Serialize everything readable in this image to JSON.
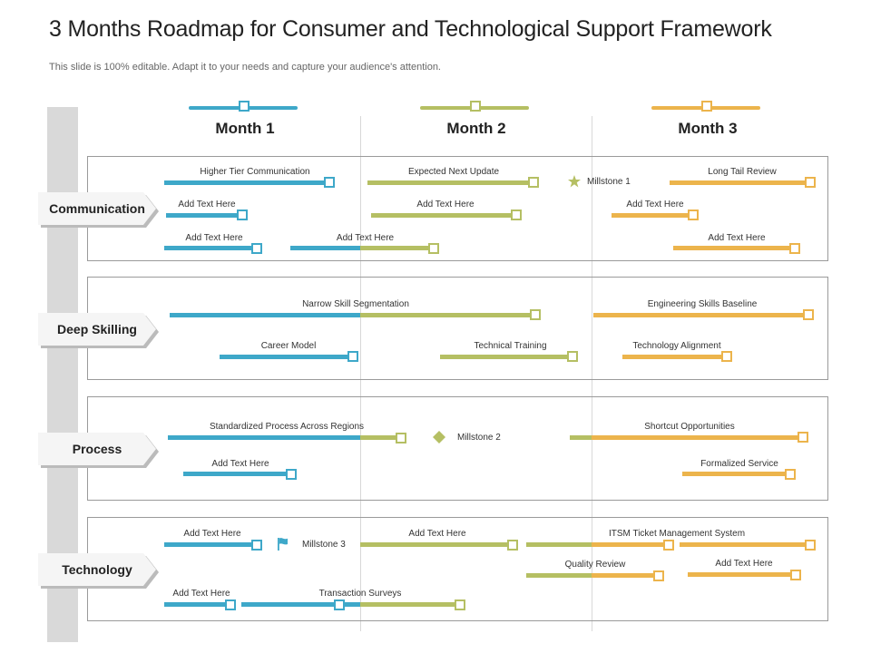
{
  "title": "3 Months Roadmap for Consumer and Technological Support Framework",
  "subtitle": "This slide is 100% editable. Adapt it to your needs and capture your audience's attention.",
  "colors": {
    "blue": "#3ea8c9",
    "olive": "#b5bf63",
    "orange": "#ecb44c",
    "spine": "#d9d9d9"
  },
  "months": [
    "Month 1",
    "Month 2",
    "Month 3"
  ],
  "sections": [
    "Communication",
    "Deep Skilling",
    "Process",
    "Technology"
  ],
  "milestones": {
    "m1": {
      "label": "Millstone 1",
      "icon": "star-icon"
    },
    "m2": {
      "label": "Millstone 2",
      "icon": "diamond-icon"
    },
    "m3": {
      "label": "Millstone 3",
      "icon": "flag-icon"
    }
  },
  "tasks": {
    "comm_higher_tier": "Higher Tier Communication",
    "comm_expected_update": "Expected Next Update",
    "comm_long_tail": "Long Tail Review",
    "comm_add_1": "Add Text Here",
    "comm_add_2": "Add Text Here",
    "comm_add_3": "Add Text Here",
    "comm_add_4": "Add Text Here",
    "comm_add_5": "Add Text Here",
    "comm_add_6": "Add Text Here",
    "ds_narrow": "Narrow Skill Segmentation",
    "ds_engineering": "Engineering Skills Baseline",
    "ds_career": "Career Model",
    "ds_technical": "Technical Training",
    "ds_alignment": "Technology Alignment",
    "pr_standardized": "Standardized Process Across Regions",
    "pr_shortcut": "Shortcut Opportunities",
    "pr_add_1": "Add Text Here",
    "pr_formalized": "Formalized Service",
    "te_add_1": "Add Text Here",
    "te_add_2": "Add Text Here",
    "te_itsm": "ITSM Ticket Management System",
    "te_quality": "Quality Review",
    "te_add_3": "Add Text Here",
    "te_add_4": "Add Text Here",
    "te_transaction": "Transaction Surveys"
  }
}
